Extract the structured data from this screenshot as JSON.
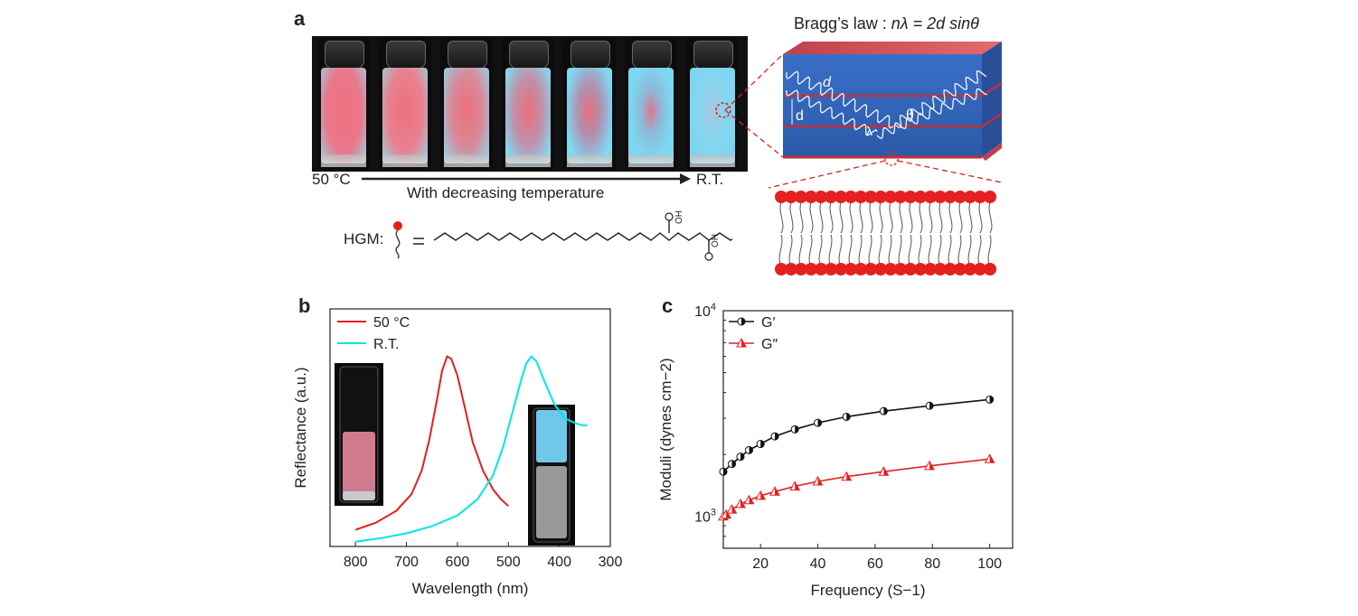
{
  "panel_a": {
    "letter": "a",
    "start_label": "50 °C",
    "end_label": "R.T.",
    "caption": "With decreasing temperature",
    "bragg_prefix": "Bragg’s law : ",
    "bragg_eq": "nλ = 2d sinθ",
    "hgm_label": "HGM:",
    "d_label": "d",
    "theta_label": "θ",
    "lambda_label": "λ",
    "oh_label": "OH"
  },
  "panel_b": {
    "letter": "b"
  },
  "panel_c": {
    "letter": "c"
  },
  "chart_data": [
    {
      "type": "line",
      "xlabel": "Wavelength (nm)",
      "ylabel": "Reflectance (a.u.)",
      "xlim": [
        850,
        300
      ],
      "xticks": [
        "800",
        "700",
        "600",
        "500",
        "400",
        "300"
      ],
      "x_reversed": true,
      "grid": false,
      "legend_position": "top-left",
      "series": [
        {
          "name": "50 °C",
          "color": "#e02020",
          "x": [
            800,
            760,
            720,
            690,
            670,
            655,
            640,
            630,
            620,
            612,
            600,
            585,
            570,
            550,
            530,
            515,
            500
          ],
          "y": [
            0.07,
            0.1,
            0.15,
            0.22,
            0.32,
            0.45,
            0.62,
            0.74,
            0.8,
            0.79,
            0.72,
            0.58,
            0.44,
            0.32,
            0.24,
            0.2,
            0.17
          ]
        },
        {
          "name": "R.T.",
          "color": "#00e5e5",
          "x": [
            800,
            750,
            700,
            650,
            600,
            560,
            530,
            510,
            490,
            475,
            465,
            455,
            445,
            430,
            410,
            390,
            370,
            355,
            345
          ],
          "y": [
            0.02,
            0.035,
            0.055,
            0.085,
            0.13,
            0.2,
            0.3,
            0.42,
            0.58,
            0.7,
            0.77,
            0.8,
            0.78,
            0.7,
            0.6,
            0.54,
            0.52,
            0.51,
            0.51
          ]
        }
      ]
    },
    {
      "type": "line",
      "xlabel": "Frequency (S−1)",
      "ylabel": "Moduli (dynes cm−2)",
      "xlim": [
        7,
        108
      ],
      "ylim": [
        700,
        10000
      ],
      "y_scale": "log",
      "xticks": [
        "20",
        "40",
        "60",
        "80",
        "100"
      ],
      "yticks": [
        "10^3",
        "10^4"
      ],
      "grid": false,
      "legend_position": "top-left",
      "series": [
        {
          "name": "G′",
          "color": "#111111",
          "marker": "half-filled-circle",
          "x": [
            7,
            10,
            13,
            16,
            20,
            25,
            32,
            40,
            50,
            63,
            79,
            100
          ],
          "y": [
            1650,
            1800,
            1950,
            2100,
            2250,
            2450,
            2650,
            2850,
            3050,
            3250,
            3450,
            3700
          ]
        },
        {
          "name": "G″",
          "color": "#e02020",
          "marker": "half-filled-triangle",
          "x": [
            7,
            8,
            10,
            13,
            16,
            20,
            25,
            32,
            40,
            50,
            63,
            79,
            100
          ],
          "y": [
            1000,
            1020,
            1080,
            1150,
            1200,
            1260,
            1320,
            1400,
            1480,
            1560,
            1650,
            1760,
            1900
          ]
        }
      ]
    }
  ]
}
